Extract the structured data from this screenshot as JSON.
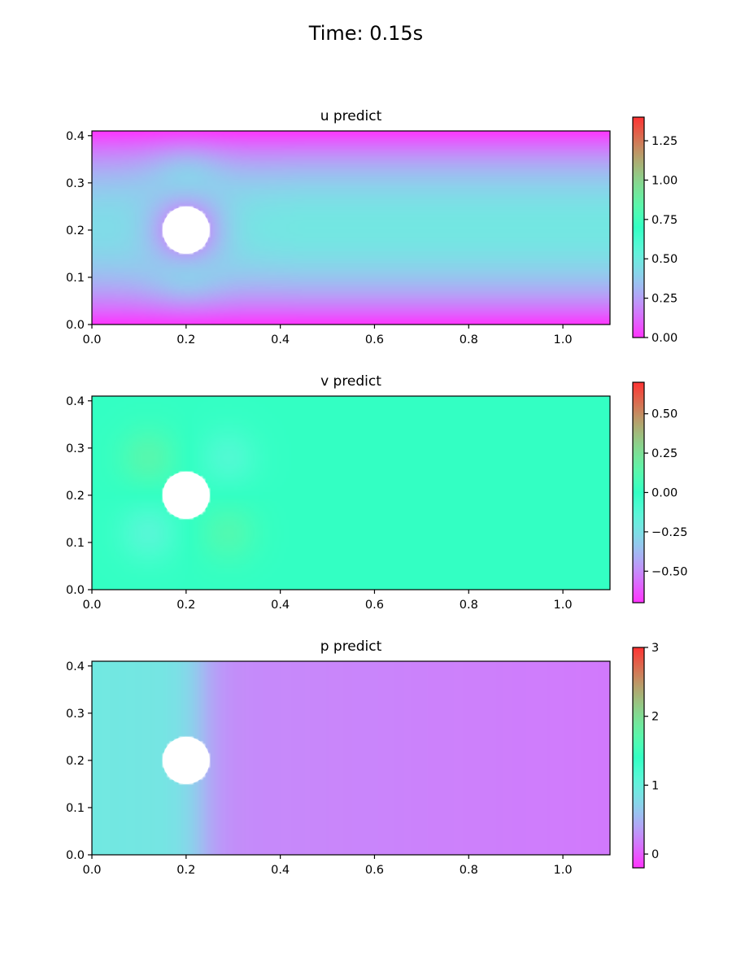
{
  "suptitle": "Time: 0.15s",
  "chart_data": [
    {
      "type": "heatmap",
      "title": "u predict",
      "xlim": [
        0.0,
        1.1
      ],
      "ylim": [
        0.0,
        0.41
      ],
      "xticks": [
        0.0,
        0.2,
        0.4,
        0.6,
        0.8,
        1.0
      ],
      "xtick_labels": [
        "0.0",
        "0.2",
        "0.4",
        "0.6",
        "0.8",
        "1.0"
      ],
      "yticks": [
        0.0,
        0.1,
        0.2,
        0.3,
        0.4
      ],
      "ytick_labels": [
        "0.0",
        "0.1",
        "0.2",
        "0.3",
        "0.4"
      ],
      "cylinder": {
        "center": [
          0.2,
          0.2
        ],
        "radius": 0.05
      },
      "colormap": "rainbow",
      "colorbar": {
        "range": [
          0.0,
          1.4
        ],
        "ticks": [
          0.0,
          0.25,
          0.5,
          0.75,
          1.0,
          1.25
        ],
        "tick_labels": [
          "0.00",
          "0.25",
          "0.50",
          "0.75",
          "1.00",
          "1.25"
        ]
      }
    },
    {
      "type": "heatmap",
      "title": "v predict",
      "xlim": [
        0.0,
        1.1
      ],
      "ylim": [
        0.0,
        0.41
      ],
      "xticks": [
        0.0,
        0.2,
        0.4,
        0.6,
        0.8,
        1.0
      ],
      "xtick_labels": [
        "0.0",
        "0.2",
        "0.4",
        "0.6",
        "0.8",
        "1.0"
      ],
      "yticks": [
        0.0,
        0.1,
        0.2,
        0.3,
        0.4
      ],
      "ytick_labels": [
        "0.0",
        "0.1",
        "0.2",
        "0.3",
        "0.4"
      ],
      "cylinder": {
        "center": [
          0.2,
          0.2
        ],
        "radius": 0.05
      },
      "colormap": "rainbow",
      "colorbar": {
        "range": [
          -0.7,
          0.7
        ],
        "ticks": [
          -0.5,
          -0.25,
          0.0,
          0.25,
          0.5
        ],
        "tick_labels": [
          "−0.50",
          "−0.25",
          "0.00",
          "0.25",
          "0.50"
        ]
      }
    },
    {
      "type": "heatmap",
      "title": "p predict",
      "xlim": [
        0.0,
        1.1
      ],
      "ylim": [
        0.0,
        0.41
      ],
      "xticks": [
        0.0,
        0.2,
        0.4,
        0.6,
        0.8,
        1.0
      ],
      "xtick_labels": [
        "0.0",
        "0.2",
        "0.4",
        "0.6",
        "0.8",
        "1.0"
      ],
      "yticks": [
        0.0,
        0.1,
        0.2,
        0.3,
        0.4
      ],
      "ytick_labels": [
        "0.0",
        "0.1",
        "0.2",
        "0.3",
        "0.4"
      ],
      "cylinder": {
        "center": [
          0.2,
          0.2
        ],
        "radius": 0.05
      },
      "colormap": "rainbow",
      "colorbar": {
        "range": [
          -0.2,
          3.0
        ],
        "ticks": [
          0,
          1,
          2,
          3
        ],
        "tick_labels": [
          "0",
          "1",
          "2",
          "3"
        ]
      }
    }
  ]
}
